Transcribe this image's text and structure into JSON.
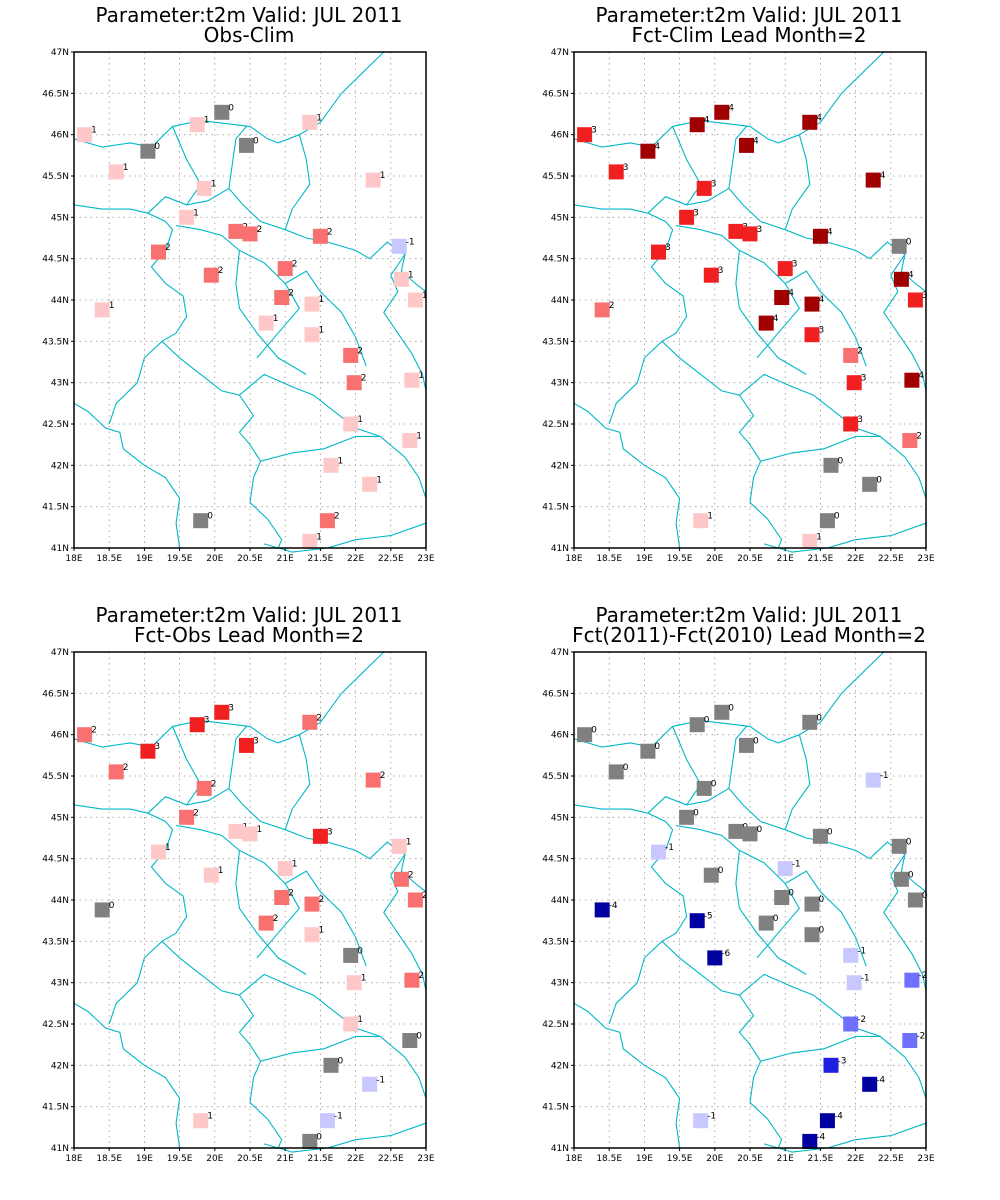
{
  "colors": {
    "neg4": "#0000a0",
    "neg3": "#2020e0",
    "neg2": "#7070ff",
    "neg1": "#c8c8ff",
    "zero": "#808080",
    "pos1": "#ffc8c8",
    "pos2": "#f87070",
    "pos3": "#f02020",
    "pos4": "#a00000",
    "border": "#00b8c8",
    "frame": "#000000",
    "grid": "#9a9a9a"
  },
  "chart_data": [
    {
      "type": "scatter",
      "title": "Parameter:t2m Valid: JUL 2011",
      "subtitle": "Obs-Clim",
      "xlim": [
        18,
        23
      ],
      "ylim": [
        41,
        47
      ],
      "xticks": [
        "18E",
        "18.5E",
        "19E",
        "19.5E",
        "20E",
        "20.5E",
        "21E",
        "21.5E",
        "22E",
        "22.5E",
        "23E"
      ],
      "yticks": [
        "41N",
        "41.5N",
        "42N",
        "42.5N",
        "43N",
        "43.5N",
        "44N",
        "44.5N",
        "45N",
        "45.5N",
        "46N",
        "46.5N",
        "47N"
      ],
      "grid": true,
      "points": [
        {
          "lon": 18.15,
          "lat": 46.0,
          "v": 1
        },
        {
          "lon": 18.6,
          "lat": 45.55,
          "v": 1
        },
        {
          "lon": 19.05,
          "lat": 45.8,
          "v": 0
        },
        {
          "lon": 19.75,
          "lat": 46.12,
          "v": 1
        },
        {
          "lon": 20.1,
          "lat": 46.27,
          "v": 0
        },
        {
          "lon": 20.45,
          "lat": 45.87,
          "v": 0
        },
        {
          "lon": 21.35,
          "lat": 46.15,
          "v": 1
        },
        {
          "lon": 19.85,
          "lat": 45.35,
          "v": 1
        },
        {
          "lon": 22.25,
          "lat": 45.45,
          "v": 1
        },
        {
          "lon": 19.6,
          "lat": 45.0,
          "v": 1
        },
        {
          "lon": 20.3,
          "lat": 44.83,
          "v": 2
        },
        {
          "lon": 20.5,
          "lat": 44.8,
          "v": 2
        },
        {
          "lon": 21.5,
          "lat": 44.77,
          "v": 2
        },
        {
          "lon": 22.62,
          "lat": 44.65,
          "v": -1
        },
        {
          "lon": 19.2,
          "lat": 44.58,
          "v": 2
        },
        {
          "lon": 19.95,
          "lat": 44.3,
          "v": 2
        },
        {
          "lon": 21.0,
          "lat": 44.38,
          "v": 2
        },
        {
          "lon": 22.65,
          "lat": 44.25,
          "v": 1
        },
        {
          "lon": 20.95,
          "lat": 44.03,
          "v": 2
        },
        {
          "lon": 18.4,
          "lat": 43.88,
          "v": 1
        },
        {
          "lon": 21.38,
          "lat": 43.95,
          "v": 1
        },
        {
          "lon": 22.85,
          "lat": 44.0,
          "v": 1
        },
        {
          "lon": 20.73,
          "lat": 43.72,
          "v": 1
        },
        {
          "lon": 21.38,
          "lat": 43.58,
          "v": 1
        },
        {
          "lon": 21.93,
          "lat": 43.33,
          "v": 2
        },
        {
          "lon": 21.98,
          "lat": 43.0,
          "v": 2
        },
        {
          "lon": 22.8,
          "lat": 43.03,
          "v": 1
        },
        {
          "lon": 21.93,
          "lat": 42.5,
          "v": 1
        },
        {
          "lon": 22.77,
          "lat": 42.3,
          "v": 1
        },
        {
          "lon": 21.65,
          "lat": 42.0,
          "v": 1
        },
        {
          "lon": 22.2,
          "lat": 41.77,
          "v": 1
        },
        {
          "lon": 19.8,
          "lat": 41.33,
          "v": 0
        },
        {
          "lon": 21.6,
          "lat": 41.33,
          "v": 2
        },
        {
          "lon": 21.35,
          "lat": 41.08,
          "v": 1
        }
      ]
    },
    {
      "type": "scatter",
      "title": "Parameter:t2m Valid: JUL 2011",
      "subtitle": "Fct-Clim Lead Month=2",
      "xlim": [
        18,
        23
      ],
      "ylim": [
        41,
        47
      ],
      "xticks": [
        "18E",
        "18.5E",
        "19E",
        "19.5E",
        "20E",
        "20.5E",
        "21E",
        "21.5E",
        "22E",
        "22.5E",
        "23E"
      ],
      "yticks": [
        "41N",
        "41.5N",
        "42N",
        "42.5N",
        "43N",
        "43.5N",
        "44N",
        "44.5N",
        "45N",
        "45.5N",
        "46N",
        "46.5N",
        "47N"
      ],
      "grid": true,
      "points": [
        {
          "lon": 18.15,
          "lat": 46.0,
          "v": 3
        },
        {
          "lon": 18.6,
          "lat": 45.55,
          "v": 3
        },
        {
          "lon": 19.05,
          "lat": 45.8,
          "v": 4
        },
        {
          "lon": 19.75,
          "lat": 46.12,
          "v": 4
        },
        {
          "lon": 20.1,
          "lat": 46.27,
          "v": 4
        },
        {
          "lon": 20.45,
          "lat": 45.87,
          "v": 4
        },
        {
          "lon": 21.35,
          "lat": 46.15,
          "v": 4
        },
        {
          "lon": 19.85,
          "lat": 45.35,
          "v": 3
        },
        {
          "lon": 22.25,
          "lat": 45.45,
          "v": 4
        },
        {
          "lon": 19.6,
          "lat": 45.0,
          "v": 3
        },
        {
          "lon": 20.3,
          "lat": 44.83,
          "v": 3
        },
        {
          "lon": 20.5,
          "lat": 44.8,
          "v": 3
        },
        {
          "lon": 21.5,
          "lat": 44.77,
          "v": 4
        },
        {
          "lon": 22.62,
          "lat": 44.65,
          "v": 0
        },
        {
          "lon": 19.2,
          "lat": 44.58,
          "v": 3
        },
        {
          "lon": 19.95,
          "lat": 44.3,
          "v": 3
        },
        {
          "lon": 21.0,
          "lat": 44.38,
          "v": 3
        },
        {
          "lon": 22.65,
          "lat": 44.25,
          "v": 4
        },
        {
          "lon": 20.95,
          "lat": 44.03,
          "v": 4
        },
        {
          "lon": 18.4,
          "lat": 43.88,
          "v": 2
        },
        {
          "lon": 21.38,
          "lat": 43.95,
          "v": 4
        },
        {
          "lon": 22.85,
          "lat": 44.0,
          "v": 3
        },
        {
          "lon": 20.73,
          "lat": 43.72,
          "v": 4
        },
        {
          "lon": 21.38,
          "lat": 43.58,
          "v": 3
        },
        {
          "lon": 21.93,
          "lat": 43.33,
          "v": 2
        },
        {
          "lon": 21.98,
          "lat": 43.0,
          "v": 3
        },
        {
          "lon": 22.8,
          "lat": 43.03,
          "v": 4
        },
        {
          "lon": 21.93,
          "lat": 42.5,
          "v": 3
        },
        {
          "lon": 22.77,
          "lat": 42.3,
          "v": 2
        },
        {
          "lon": 21.65,
          "lat": 42.0,
          "v": 0
        },
        {
          "lon": 22.2,
          "lat": 41.77,
          "v": 0
        },
        {
          "lon": 19.8,
          "lat": 41.33,
          "v": 1
        },
        {
          "lon": 21.6,
          "lat": 41.33,
          "v": 0
        },
        {
          "lon": 21.35,
          "lat": 41.08,
          "v": 1
        }
      ]
    },
    {
      "type": "scatter",
      "title": "Parameter:t2m Valid: JUL 2011",
      "subtitle": "Fct-Obs Lead Month=2",
      "xlim": [
        18,
        23
      ],
      "ylim": [
        41,
        47
      ],
      "xticks": [
        "18E",
        "18.5E",
        "19E",
        "19.5E",
        "20E",
        "20.5E",
        "21E",
        "21.5E",
        "22E",
        "22.5E",
        "23E"
      ],
      "yticks": [
        "41N",
        "41.5N",
        "42N",
        "42.5N",
        "43N",
        "43.5N",
        "44N",
        "44.5N",
        "45N",
        "45.5N",
        "46N",
        "46.5N",
        "47N"
      ],
      "grid": true,
      "points": [
        {
          "lon": 18.15,
          "lat": 46.0,
          "v": 2
        },
        {
          "lon": 18.6,
          "lat": 45.55,
          "v": 2
        },
        {
          "lon": 19.05,
          "lat": 45.8,
          "v": 3
        },
        {
          "lon": 19.75,
          "lat": 46.12,
          "v": 3
        },
        {
          "lon": 20.1,
          "lat": 46.27,
          "v": 3
        },
        {
          "lon": 20.45,
          "lat": 45.87,
          "v": 3
        },
        {
          "lon": 21.35,
          "lat": 46.15,
          "v": 2
        },
        {
          "lon": 19.85,
          "lat": 45.35,
          "v": 2
        },
        {
          "lon": 22.25,
          "lat": 45.45,
          "v": 2
        },
        {
          "lon": 19.6,
          "lat": 45.0,
          "v": 2
        },
        {
          "lon": 20.3,
          "lat": 44.83,
          "v": 1
        },
        {
          "lon": 20.5,
          "lat": 44.8,
          "v": 1
        },
        {
          "lon": 21.5,
          "lat": 44.77,
          "v": 3
        },
        {
          "lon": 22.62,
          "lat": 44.65,
          "v": 1
        },
        {
          "lon": 19.2,
          "lat": 44.58,
          "v": 1
        },
        {
          "lon": 19.95,
          "lat": 44.3,
          "v": 1
        },
        {
          "lon": 21.0,
          "lat": 44.38,
          "v": 1
        },
        {
          "lon": 22.65,
          "lat": 44.25,
          "v": 2
        },
        {
          "lon": 20.95,
          "lat": 44.03,
          "v": 2
        },
        {
          "lon": 18.4,
          "lat": 43.88,
          "v": 0
        },
        {
          "lon": 21.38,
          "lat": 43.95,
          "v": 2
        },
        {
          "lon": 22.85,
          "lat": 44.0,
          "v": 2
        },
        {
          "lon": 20.73,
          "lat": 43.72,
          "v": 2
        },
        {
          "lon": 21.38,
          "lat": 43.58,
          "v": 1
        },
        {
          "lon": 21.93,
          "lat": 43.33,
          "v": 0
        },
        {
          "lon": 21.98,
          "lat": 43.0,
          "v": 1
        },
        {
          "lon": 22.8,
          "lat": 43.03,
          "v": 2
        },
        {
          "lon": 21.93,
          "lat": 42.5,
          "v": 1
        },
        {
          "lon": 22.77,
          "lat": 42.3,
          "v": 0
        },
        {
          "lon": 21.65,
          "lat": 42.0,
          "v": 0
        },
        {
          "lon": 22.2,
          "lat": 41.77,
          "v": -1
        },
        {
          "lon": 19.8,
          "lat": 41.33,
          "v": 1
        },
        {
          "lon": 21.6,
          "lat": 41.33,
          "v": -1
        },
        {
          "lon": 21.35,
          "lat": 41.08,
          "v": 0
        }
      ]
    },
    {
      "type": "scatter",
      "title": "Parameter:t2m Valid: JUL 2011",
      "subtitle": "Fct(2011)-Fct(2010) Lead Month=2",
      "xlim": [
        18,
        23
      ],
      "ylim": [
        41,
        47
      ],
      "xticks": [
        "18E",
        "18.5E",
        "19E",
        "19.5E",
        "20E",
        "20.5E",
        "21E",
        "21.5E",
        "22E",
        "22.5E",
        "23E"
      ],
      "yticks": [
        "41N",
        "41.5N",
        "42N",
        "42.5N",
        "43N",
        "43.5N",
        "44N",
        "44.5N",
        "45N",
        "45.5N",
        "46N",
        "46.5N",
        "47N"
      ],
      "grid": true,
      "points": [
        {
          "lon": 18.15,
          "lat": 46.0,
          "v": 0
        },
        {
          "lon": 18.6,
          "lat": 45.55,
          "v": 0
        },
        {
          "lon": 19.05,
          "lat": 45.8,
          "v": 0
        },
        {
          "lon": 19.75,
          "lat": 46.12,
          "v": 0
        },
        {
          "lon": 20.1,
          "lat": 46.27,
          "v": 0
        },
        {
          "lon": 20.45,
          "lat": 45.87,
          "v": 0
        },
        {
          "lon": 21.35,
          "lat": 46.15,
          "v": 0
        },
        {
          "lon": 19.85,
          "lat": 45.35,
          "v": 0
        },
        {
          "lon": 22.25,
          "lat": 45.45,
          "v": -1
        },
        {
          "lon": 19.6,
          "lat": 45.0,
          "v": 0
        },
        {
          "lon": 20.3,
          "lat": 44.83,
          "v": 0
        },
        {
          "lon": 20.5,
          "lat": 44.8,
          "v": 0
        },
        {
          "lon": 21.5,
          "lat": 44.77,
          "v": 0
        },
        {
          "lon": 22.62,
          "lat": 44.65,
          "v": 0
        },
        {
          "lon": 19.2,
          "lat": 44.58,
          "v": -1
        },
        {
          "lon": 19.95,
          "lat": 44.3,
          "v": 0
        },
        {
          "lon": 21.0,
          "lat": 44.38,
          "v": -1
        },
        {
          "lon": 22.65,
          "lat": 44.25,
          "v": 0
        },
        {
          "lon": 20.95,
          "lat": 44.03,
          "v": 0
        },
        {
          "lon": 18.4,
          "lat": 43.88,
          "v": -4
        },
        {
          "lon": 21.38,
          "lat": 43.95,
          "v": 0
        },
        {
          "lon": 22.85,
          "lat": 44.0,
          "v": 0
        },
        {
          "lon": 20.73,
          "lat": 43.72,
          "v": 0
        },
        {
          "lon": 21.38,
          "lat": 43.58,
          "v": 0
        },
        {
          "lon": 21.93,
          "lat": 43.33,
          "v": -1
        },
        {
          "lon": 21.98,
          "lat": 43.0,
          "v": -1
        },
        {
          "lon": 22.8,
          "lat": 43.03,
          "v": -2
        },
        {
          "lon": 21.93,
          "lat": 42.5,
          "v": -2
        },
        {
          "lon": 22.77,
          "lat": 42.3,
          "v": -2
        },
        {
          "lon": 21.65,
          "lat": 42.0,
          "v": -3
        },
        {
          "lon": 22.2,
          "lat": 41.77,
          "v": -4
        },
        {
          "lon": 19.8,
          "lat": 41.33,
          "v": -1
        },
        {
          "lon": 21.6,
          "lat": 41.33,
          "v": -4
        },
        {
          "lon": 21.35,
          "lat": 41.08,
          "v": -4
        },
        {
          "lon": 19.75,
          "lat": 43.75,
          "v": -5
        },
        {
          "lon": 20.0,
          "lat": 43.3,
          "v": -6
        }
      ]
    }
  ]
}
